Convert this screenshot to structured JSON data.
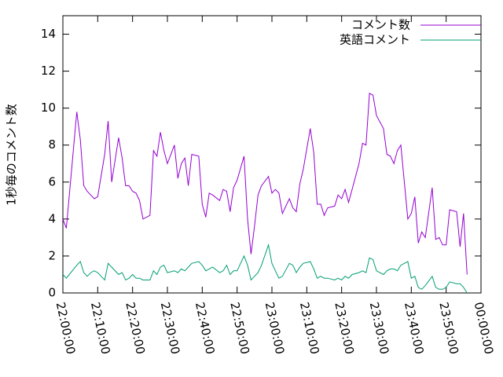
{
  "chart_data": {
    "type": "line",
    "ylabel": "1秒毎のコメント数",
    "x": [
      "22:00:00",
      "22:01:00",
      "22:04:00",
      "22:05:00",
      "22:06:00",
      "22:07:00",
      "22:08:00",
      "22:09:00",
      "22:10:00",
      "22:12:00",
      "22:13:00",
      "22:14:00",
      "22:16:00",
      "22:17:00",
      "22:18:00",
      "22:19:00",
      "22:20:00",
      "22:21:00",
      "22:22:00",
      "22:23:00",
      "22:25:00",
      "22:26:00",
      "22:27:00",
      "22:28:00",
      "22:29:00",
      "22:30:00",
      "22:32:00",
      "22:33:00",
      "22:34:00",
      "22:35:00",
      "22:36:00",
      "22:37:00",
      "22:39:00",
      "22:40:00",
      "22:41:00",
      "22:42:00",
      "22:43:00",
      "22:45:00",
      "22:46:00",
      "22:47:00",
      "22:48:00",
      "22:49:00",
      "22:50:00",
      "22:52:00",
      "22:53:00",
      "22:54:00",
      "22:55:00",
      "22:56:00",
      "22:57:00",
      "22:59:00",
      "23:00:00",
      "23:01:00",
      "23:02:00",
      "23:03:00",
      "23:05:00",
      "23:06:00",
      "23:07:00",
      "23:08:00",
      "23:09:00",
      "23:11:00",
      "23:12:00",
      "23:13:00",
      "23:14:00",
      "23:15:00",
      "23:16:00",
      "23:18:00",
      "23:19:00",
      "23:20:00",
      "23:21:00",
      "23:22:00",
      "23:23:00",
      "23:25:00",
      "23:26:00",
      "23:27:00",
      "23:28:00",
      "23:29:00",
      "23:30:00",
      "23:32:00",
      "23:33:00",
      "23:34:00",
      "23:35:00",
      "23:36:00",
      "23:37:00",
      "23:39:00",
      "23:40:00",
      "23:41:00",
      "23:42:00",
      "23:43:00",
      "23:44:00",
      "23:46:00",
      "23:47:00",
      "23:48:00",
      "23:49:00",
      "23:50:00",
      "23:51:00",
      "23:53:00",
      "23:54:00",
      "23:55:00",
      "23:56:00"
    ],
    "series": [
      {
        "name": "コメント数",
        "color": "#9400d3",
        "values": [
          4.0,
          3.5,
          9.8,
          8.3,
          5.8,
          5.5,
          5.3,
          5.1,
          5.2,
          7.5,
          9.3,
          6.0,
          8.4,
          7.3,
          5.8,
          5.8,
          5.5,
          5.4,
          5.0,
          4.0,
          4.2,
          7.7,
          7.4,
          8.7,
          7.7,
          7.0,
          8.0,
          6.2,
          7.0,
          7.3,
          5.8,
          7.5,
          7.4,
          4.8,
          4.1,
          5.4,
          5.3,
          5.0,
          5.6,
          5.5,
          4.4,
          5.7,
          6.1,
          7.4,
          4.0,
          2.1,
          3.6,
          5.3,
          5.8,
          6.3,
          5.4,
          5.6,
          5.4,
          4.3,
          5.1,
          4.6,
          4.4,
          5.9,
          6.7,
          8.9,
          7.6,
          4.8,
          4.8,
          4.2,
          4.6,
          4.7,
          5.3,
          5.1,
          5.6,
          4.9,
          5.6,
          7.0,
          8.1,
          8.0,
          10.8,
          10.7,
          9.6,
          8.9,
          7.5,
          7.4,
          7.0,
          7.7,
          8.0,
          4.0,
          4.3,
          5.2,
          2.7,
          3.3,
          3.0,
          5.7,
          2.9,
          3.0,
          2.6,
          2.6,
          4.5,
          4.4,
          2.5,
          4.3,
          1.0
        ]
      },
      {
        "name": "英語コメント",
        "color": "#009e73",
        "values": [
          1.0,
          0.8,
          1.5,
          1.7,
          1.1,
          0.9,
          1.1,
          1.2,
          1.1,
          0.7,
          1.6,
          1.4,
          1.0,
          1.1,
          0.7,
          0.8,
          1.0,
          0.8,
          0.8,
          0.7,
          0.7,
          1.2,
          1.0,
          1.4,
          1.5,
          1.1,
          1.2,
          1.1,
          1.3,
          1.2,
          1.4,
          1.6,
          1.7,
          1.5,
          1.2,
          1.3,
          1.4,
          1.1,
          1.2,
          1.5,
          1.0,
          1.2,
          1.2,
          2.0,
          1.5,
          0.7,
          0.9,
          1.1,
          1.5,
          2.6,
          1.6,
          1.2,
          0.8,
          0.9,
          1.6,
          1.5,
          1.1,
          1.4,
          1.6,
          1.7,
          1.3,
          0.8,
          0.9,
          0.8,
          0.8,
          0.7,
          0.8,
          0.7,
          0.9,
          0.8,
          1.0,
          1.1,
          1.2,
          1.1,
          1.9,
          1.8,
          1.2,
          1.0,
          1.2,
          1.3,
          1.3,
          1.2,
          1.5,
          1.7,
          0.8,
          0.9,
          0.3,
          0.2,
          0.4,
          0.9,
          0.3,
          0.2,
          0.2,
          0.3,
          0.6,
          0.5,
          0.5,
          0.3,
          0.0
        ]
      }
    ],
    "xlim": [
      "22:00:00",
      "00:00:00"
    ],
    "xticks": [
      "22:00:00",
      "22:10:00",
      "22:20:00",
      "22:30:00",
      "22:40:00",
      "22:50:00",
      "23:00:00",
      "23:10:00",
      "23:20:00",
      "23:30:00",
      "23:40:00",
      "23:50:00",
      "00:00:00"
    ],
    "ylim": [
      0,
      15
    ],
    "yticks": [
      0,
      2,
      4,
      6,
      8,
      10,
      12,
      14
    ],
    "legend": "upper right"
  }
}
